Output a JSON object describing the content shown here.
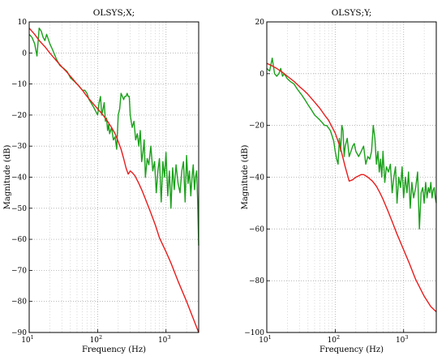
{
  "colors": {
    "measured": "#1aa01a",
    "model": "#e81c1c",
    "grid": "#b0b0b0"
  },
  "chart_data": [
    {
      "type": "line",
      "title": "OLSYS;X;",
      "xlabel": "Frequency  (Hz)",
      "ylabel": "Magnitude (dB)",
      "xscale": "log",
      "xlim": [
        10,
        3000
      ],
      "ylim": [
        -90,
        10
      ],
      "grid": true,
      "xticks": [
        {
          "v": 10,
          "base": "10",
          "exp": "1"
        },
        {
          "v": 100,
          "base": "10",
          "exp": "2"
        },
        {
          "v": 1000,
          "base": "10",
          "exp": "3"
        }
      ],
      "yticks": [
        {
          "v": 10,
          "label": "10"
        },
        {
          "v": 0,
          "label": "0"
        },
        {
          "v": -10,
          "label": "−10"
        },
        {
          "v": -20,
          "label": "−20"
        },
        {
          "v": -30,
          "label": "−30"
        },
        {
          "v": -40,
          "label": "−40"
        },
        {
          "v": -50,
          "label": "−50"
        },
        {
          "v": -60,
          "label": "−60"
        },
        {
          "v": -70,
          "label": "−70"
        },
        {
          "v": -80,
          "label": "−80"
        },
        {
          "v": -90,
          "label": "−90"
        }
      ],
      "series": [
        {
          "color": "#1aa01a",
          "x": [
            10,
            11,
            12,
            13,
            14,
            15,
            16,
            17,
            18,
            20,
            22,
            25,
            28,
            32,
            36,
            40,
            45,
            50,
            55,
            60,
            65,
            70,
            75,
            80,
            85,
            90,
            95,
            100,
            105,
            110,
            115,
            120,
            125,
            130,
            135,
            140,
            145,
            150,
            160,
            170,
            180,
            190,
            200,
            210,
            220,
            230,
            240,
            250,
            260,
            270,
            280,
            290,
            300,
            320,
            340,
            360,
            380,
            400,
            420,
            440,
            460,
            480,
            500,
            530,
            560,
            600,
            640,
            680,
            720,
            760,
            800,
            850,
            900,
            950,
            1000,
            1060,
            1120,
            1180,
            1250,
            1320,
            1400,
            1500,
            1600,
            1700,
            1800,
            1900,
            2000,
            2100,
            2200,
            2300,
            2400,
            2500,
            2600,
            2700,
            2800,
            2900,
            3000
          ],
          "y": [
            6,
            5,
            3,
            -1,
            8,
            7,
            5,
            4,
            6,
            3,
            1,
            -2,
            -4,
            -5,
            -6,
            -8,
            -9,
            -10,
            -11,
            -12,
            -12,
            -13,
            -15,
            -16,
            -17,
            -18,
            -19,
            -20,
            -16,
            -14,
            -20,
            -18,
            -16,
            -22,
            -21,
            -25,
            -23,
            -26,
            -24,
            -28,
            -27,
            -31,
            -20,
            -18,
            -13,
            -14,
            -15,
            -14,
            -14,
            -13,
            -14,
            -14,
            -20,
            -24,
            -22,
            -28,
            -26,
            -30,
            -25,
            -35,
            -32,
            -28,
            -40,
            -34,
            -36,
            -30,
            -38,
            -35,
            -45,
            -38,
            -34,
            -48,
            -35,
            -40,
            -32,
            -46,
            -38,
            -50,
            -37,
            -44,
            -36,
            -42,
            -45,
            -38,
            -35,
            -48,
            -33,
            -42,
            -38,
            -46,
            -40,
            -36,
            -44,
            -40,
            -38,
            -48,
            -62
          ]
        },
        {
          "color": "#e81c1c",
          "x": [
            10,
            12,
            14,
            17,
            20,
            25,
            30,
            35,
            40,
            50,
            60,
            70,
            80,
            100,
            120,
            140,
            160,
            180,
            200,
            220,
            240,
            260,
            280,
            300,
            320,
            350,
            400,
            450,
            500,
            600,
            700,
            800,
            1000,
            1200,
            1500,
            2000,
            2500,
            3000
          ],
          "y": [
            8,
            6,
            4,
            2,
            0,
            -2.5,
            -4.5,
            -6,
            -7.5,
            -10,
            -12,
            -14,
            -15.5,
            -18,
            -20,
            -22,
            -24,
            -26,
            -28.5,
            -31,
            -34,
            -37,
            -39,
            -38,
            -38.5,
            -39.5,
            -42,
            -44.5,
            -47,
            -51.5,
            -55.5,
            -59.5,
            -64,
            -68,
            -73.5,
            -80,
            -85.5,
            -90
          ]
        }
      ]
    },
    {
      "type": "line",
      "title": "OLSYS;Y;",
      "xlabel": "Frequency  (Hz)",
      "ylabel": "Magnitude (dB)",
      "xscale": "log",
      "xlim": [
        10,
        3000
      ],
      "ylim": [
        -100,
        20
      ],
      "grid": true,
      "xticks": [
        {
          "v": 10,
          "base": "10",
          "exp": "1"
        },
        {
          "v": 100,
          "base": "10",
          "exp": "2"
        },
        {
          "v": 1000,
          "base": "10",
          "exp": "3"
        }
      ],
      "yticks": [
        {
          "v": 20,
          "label": "20"
        },
        {
          "v": 0,
          "label": "0"
        },
        {
          "v": -20,
          "label": "−20"
        },
        {
          "v": -40,
          "label": "−40"
        },
        {
          "v": -60,
          "label": "−60"
        },
        {
          "v": -80,
          "label": "−80"
        },
        {
          "v": -100,
          "label": "−100"
        }
      ],
      "series": [
        {
          "color": "#1aa01a",
          "x": [
            10,
            11,
            12,
            13,
            14,
            15,
            16,
            17,
            18,
            20,
            22,
            25,
            28,
            32,
            36,
            40,
            45,
            50,
            55,
            60,
            65,
            70,
            75,
            80,
            85,
            90,
            95,
            100,
            105,
            110,
            115,
            120,
            125,
            130,
            135,
            140,
            150,
            160,
            170,
            180,
            190,
            200,
            220,
            240,
            260,
            280,
            300,
            320,
            340,
            360,
            380,
            400,
            420,
            440,
            460,
            480,
            500,
            530,
            560,
            600,
            640,
            680,
            720,
            760,
            800,
            850,
            900,
            950,
            1000,
            1060,
            1120,
            1180,
            1250,
            1320,
            1400,
            1500,
            1600,
            1700,
            1800,
            1900,
            2000,
            2100,
            2200,
            2300,
            2400,
            2500,
            2600,
            2700,
            2800,
            2900,
            3000
          ],
          "y": [
            2,
            1,
            6,
            0,
            -1,
            0,
            2,
            -1,
            0,
            -2,
            -3,
            -4,
            -6,
            -8,
            -10,
            -12,
            -14,
            -16,
            -17,
            -18,
            -19,
            -20,
            -20,
            -21,
            -22,
            -24,
            -26,
            -30,
            -33,
            -35,
            -25,
            -30,
            -20,
            -22,
            -32,
            -28,
            -25,
            -32,
            -30,
            -28,
            -27,
            -30,
            -32,
            -30,
            -28,
            -35,
            -32,
            -33,
            -30,
            -20,
            -25,
            -35,
            -30,
            -38,
            -33,
            -40,
            -30,
            -42,
            -36,
            -38,
            -35,
            -46,
            -40,
            -36,
            -50,
            -40,
            -44,
            -36,
            -48,
            -40,
            -46,
            -38,
            -52,
            -42,
            -48,
            -44,
            -38,
            -60,
            -46,
            -44,
            -50,
            -42,
            -48,
            -44,
            -46,
            -42,
            -48,
            -45,
            -44,
            -48,
            -50
          ]
        },
        {
          "color": "#e81c1c",
          "x": [
            10,
            12,
            14,
            17,
            20,
            25,
            30,
            35,
            40,
            50,
            60,
            70,
            80,
            100,
            120,
            140,
            160,
            180,
            200,
            220,
            240,
            260,
            280,
            300,
            350,
            400,
            450,
            500,
            600,
            700,
            800,
            1000,
            1200,
            1500,
            2000,
            2500,
            3000
          ],
          "y": [
            4,
            3,
            2,
            0.5,
            -1,
            -3,
            -5,
            -6.5,
            -8,
            -11,
            -13.5,
            -16,
            -18,
            -23,
            -29,
            -36,
            -41.5,
            -41,
            -40,
            -39.5,
            -39,
            -39,
            -39.5,
            -40,
            -41.5,
            -43.5,
            -46,
            -48.5,
            -53.5,
            -58,
            -62,
            -68,
            -73,
            -79.5,
            -86,
            -90,
            -92
          ]
        }
      ]
    }
  ]
}
